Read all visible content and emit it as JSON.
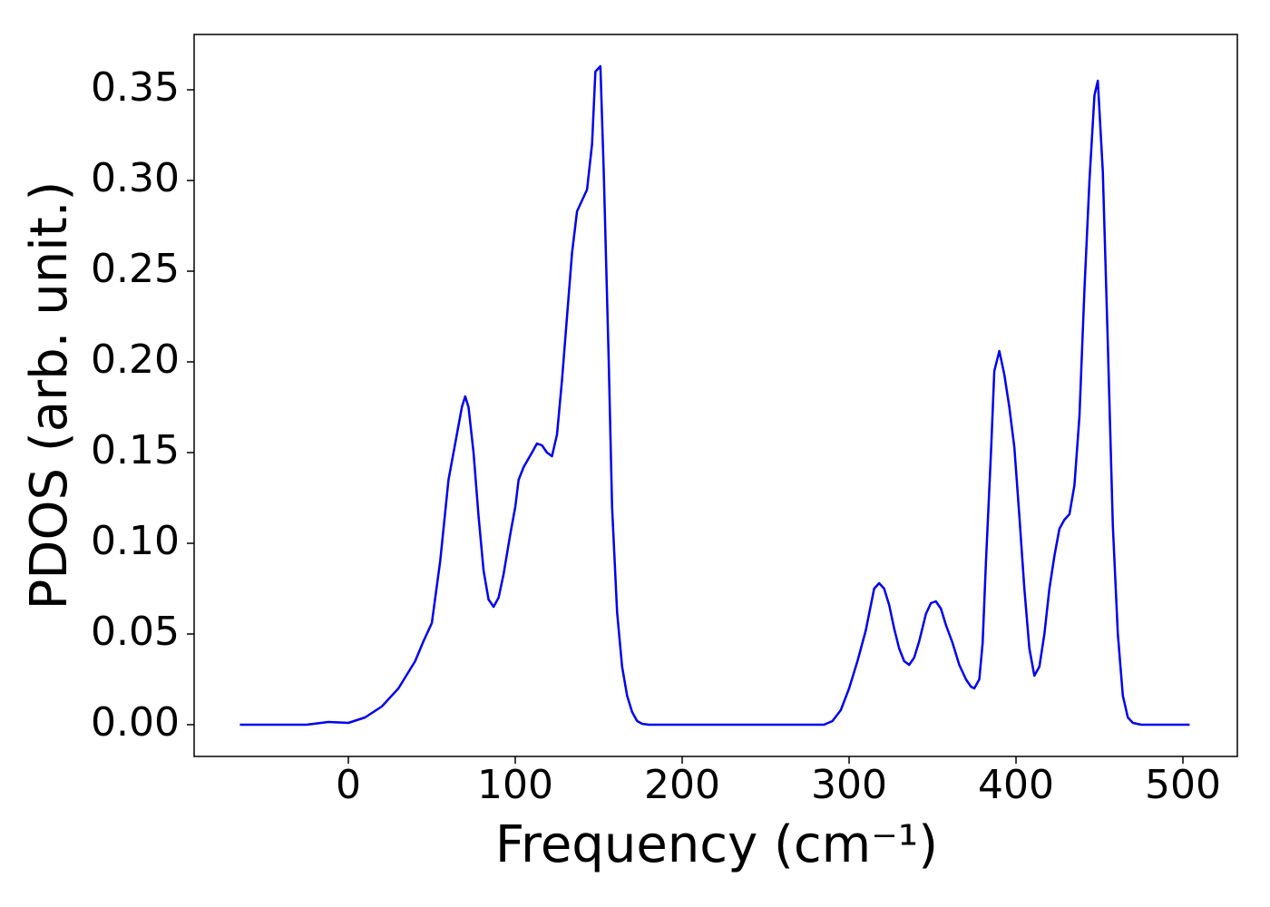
{
  "chart_data": {
    "type": "line",
    "xlabel": "Frequency (cm⁻¹)",
    "ylabel": "PDOS (arb. unit.)",
    "xlim": [
      -92.4,
      532.6
    ],
    "ylim": [
      -0.0175,
      0.3805
    ],
    "xticks": [
      0,
      100,
      200,
      300,
      400,
      500
    ],
    "yticks": [
      {
        "value": 0,
        "label": "0.00"
      },
      {
        "value": 0.05,
        "label": "0.05"
      },
      {
        "value": 0.1,
        "label": "0.10"
      },
      {
        "value": 0.15,
        "label": "0.15"
      },
      {
        "value": 0.2,
        "label": "0.20"
      },
      {
        "value": 0.25,
        "label": "0.25"
      },
      {
        "value": 0.3,
        "label": "0.30"
      },
      {
        "value": 0.35,
        "label": "0.35"
      }
    ],
    "grid": false,
    "x": [
      -65,
      -25,
      -12,
      0,
      10,
      20,
      30,
      40,
      45,
      50,
      55,
      60,
      65,
      68,
      70,
      72,
      75,
      78,
      81,
      84,
      87,
      90,
      93,
      97,
      100,
      102,
      105,
      110,
      113,
      116,
      119,
      122,
      125,
      128,
      131,
      134,
      137,
      140,
      143,
      146,
      148,
      151,
      153,
      156,
      158,
      161,
      164,
      167,
      170,
      173,
      176,
      180,
      285,
      290,
      295,
      300,
      305,
      310,
      315,
      318,
      321,
      324,
      327,
      330,
      333,
      336,
      339,
      342,
      346,
      349,
      352,
      355,
      358,
      362,
      366,
      370,
      373,
      375,
      378,
      380,
      382,
      385,
      387,
      390,
      393,
      396,
      399,
      402,
      405,
      408,
      411,
      414,
      417,
      420,
      423,
      426,
      429,
      432,
      435,
      438,
      441,
      444,
      447,
      449,
      452,
      455,
      458,
      461,
      464,
      467,
      470,
      475,
      504
    ],
    "series": [
      {
        "color": "#0000ee",
        "values": [
          0,
          0,
          0.0015,
          0.001,
          0.004,
          0.01,
          0.02,
          0.035,
          0.046,
          0.056,
          0.09,
          0.135,
          0.16,
          0.175,
          0.181,
          0.175,
          0.15,
          0.115,
          0.085,
          0.069,
          0.065,
          0.07,
          0.083,
          0.105,
          0.12,
          0.135,
          0.142,
          0.15,
          0.155,
          0.154,
          0.15,
          0.148,
          0.16,
          0.19,
          0.225,
          0.26,
          0.283,
          0.289,
          0.295,
          0.32,
          0.36,
          0.363,
          0.305,
          0.2,
          0.12,
          0.062,
          0.032,
          0.016,
          0.007,
          0.002,
          0.0005,
          0,
          0,
          0.002,
          0.008,
          0.02,
          0.035,
          0.052,
          0.075,
          0.078,
          0.075,
          0.066,
          0.053,
          0.042,
          0.035,
          0.033,
          0.037,
          0.046,
          0.061,
          0.067,
          0.068,
          0.064,
          0.055,
          0.045,
          0.033,
          0.025,
          0.021,
          0.02,
          0.025,
          0.045,
          0.09,
          0.15,
          0.195,
          0.206,
          0.193,
          0.175,
          0.153,
          0.115,
          0.075,
          0.042,
          0.027,
          0.032,
          0.05,
          0.075,
          0.093,
          0.108,
          0.113,
          0.116,
          0.132,
          0.17,
          0.24,
          0.3,
          0.347,
          0.355,
          0.305,
          0.21,
          0.11,
          0.05,
          0.016,
          0.004,
          0.001,
          0,
          0
        ]
      }
    ]
  }
}
